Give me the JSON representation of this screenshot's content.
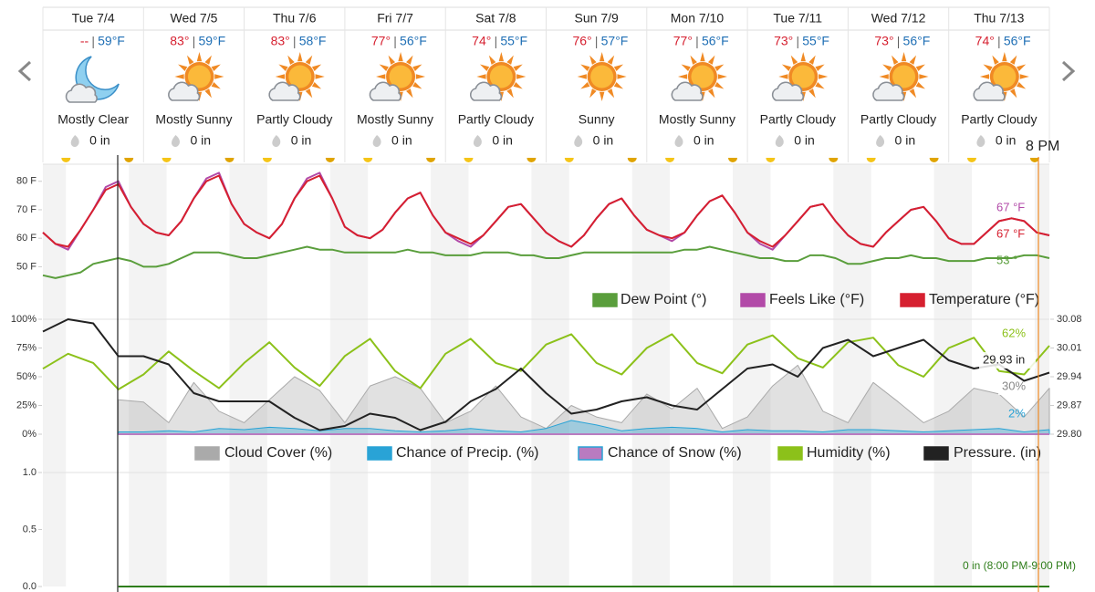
{
  "forecast": [
    {
      "date": "Tue 7/4",
      "high": "--",
      "low": "59°F",
      "condition": "Mostly Clear",
      "precip": "0 in"
    },
    {
      "date": "Wed 7/5",
      "high": "83°",
      "low": "59°F",
      "condition": "Mostly Sunny",
      "precip": "0 in"
    },
    {
      "date": "Thu 7/6",
      "high": "83°",
      "low": "58°F",
      "condition": "Partly Cloudy",
      "precip": "0 in"
    },
    {
      "date": "Fri 7/7",
      "high": "77°",
      "low": "56°F",
      "condition": "Mostly Sunny",
      "precip": "0 in"
    },
    {
      "date": "Sat 7/8",
      "high": "74°",
      "low": "55°F",
      "condition": "Partly Cloudy",
      "precip": "0 in"
    },
    {
      "date": "Sun 7/9",
      "high": "76°",
      "low": "57°F",
      "condition": "Sunny",
      "precip": "0 in"
    },
    {
      "date": "Mon 7/10",
      "high": "77°",
      "low": "56°F",
      "condition": "Mostly Sunny",
      "precip": "0 in"
    },
    {
      "date": "Tue 7/11",
      "high": "73°",
      "low": "55°F",
      "condition": "Partly Cloudy",
      "precip": "0 in"
    },
    {
      "date": "Wed 7/12",
      "high": "73°",
      "low": "56°F",
      "condition": "Partly Cloudy",
      "precip": "0 in"
    },
    {
      "date": "Thu 7/13",
      "high": "74°",
      "low": "56°F",
      "condition": "Partly Cloudy",
      "precip": "0 in"
    }
  ],
  "current_time": "8 PM",
  "chart_data": [
    {
      "type": "line",
      "ylim": [
        45,
        86
      ],
      "yticks": [
        {
          "value": 80,
          "label": "80 F"
        },
        {
          "value": 70,
          "label": "70 F"
        },
        {
          "value": 60,
          "label": "60 F"
        },
        {
          "value": 50,
          "label": "50 F"
        }
      ],
      "series": [
        {
          "name": "Dew Point (°)",
          "color": "#5a9e3c",
          "readout": "53 °",
          "values": [
            47,
            46,
            47,
            48,
            51,
            52,
            53,
            52,
            50,
            50,
            51,
            53,
            55,
            55,
            55,
            54,
            53,
            53,
            54,
            55,
            56,
            57,
            56,
            56,
            55,
            55,
            55,
            55,
            55,
            56,
            55,
            55,
            54,
            54,
            54,
            55,
            55,
            55,
            54,
            54,
            53,
            53,
            54,
            55,
            55,
            55,
            55,
            55,
            55,
            55,
            55,
            56,
            56,
            57,
            56,
            55,
            54,
            53,
            53,
            52,
            52,
            54,
            54,
            53,
            51,
            51,
            52,
            53,
            53,
            54,
            53,
            53,
            52,
            52,
            52,
            53,
            53,
            53,
            54,
            54,
            53
          ]
        },
        {
          "name": "Feels Like (°F)",
          "color": "#b24aa8",
          "readout": "67 °F",
          "values": [
            62,
            58,
            56,
            63,
            70,
            78,
            80,
            71,
            65,
            62,
            61,
            66,
            74,
            81,
            83,
            72,
            65,
            62,
            60,
            65,
            74,
            81,
            83,
            74,
            64,
            61,
            60,
            63,
            69,
            74,
            76,
            68,
            62,
            59,
            57,
            61,
            66,
            71,
            72,
            67,
            62,
            59,
            57,
            61,
            67,
            72,
            74,
            68,
            63,
            61,
            59,
            62,
            68,
            73,
            75,
            69,
            62,
            58,
            56,
            61,
            66,
            71,
            72,
            66,
            61,
            58,
            57,
            62,
            66,
            70,
            71,
            66,
            60,
            58,
            58,
            62,
            66,
            67,
            66,
            62,
            61
          ]
        },
        {
          "name": "Temperature (°F)",
          "color": "#d62030",
          "readout": "67 °F",
          "values": [
            62,
            58,
            57,
            63,
            70,
            77,
            79,
            71,
            65,
            62,
            61,
            66,
            74,
            80,
            82,
            72,
            65,
            62,
            60,
            65,
            74,
            80,
            82,
            74,
            64,
            61,
            60,
            63,
            69,
            74,
            76,
            68,
            62,
            60,
            58,
            61,
            66,
            71,
            72,
            67,
            62,
            59,
            57,
            61,
            67,
            72,
            74,
            68,
            63,
            61,
            60,
            62,
            68,
            73,
            75,
            69,
            62,
            59,
            57,
            61,
            66,
            71,
            72,
            66,
            61,
            58,
            57,
            62,
            66,
            70,
            71,
            66,
            60,
            58,
            58,
            62,
            66,
            67,
            66,
            62,
            61
          ]
        }
      ]
    },
    {
      "type": "line",
      "ylim": [
        0,
        100
      ],
      "yticks": [
        {
          "value": 100,
          "label": "100%"
        },
        {
          "value": 75,
          "label": "75%"
        },
        {
          "value": 50,
          "label": "50%"
        },
        {
          "value": 25,
          "label": "25%"
        },
        {
          "value": 0,
          "label": "0%"
        }
      ],
      "y2lim": [
        29.8,
        30.08
      ],
      "y2ticks": [
        30.08,
        30.01,
        29.94,
        29.87,
        {
          "value": 29.8,
          "label": "29.80"
        }
      ],
      "series": [
        {
          "name": "Cloud Cover (%)",
          "color": "#aaaaaa",
          "style": "area",
          "readout": "30%",
          "values": [
            null,
            null,
            null,
            30,
            28,
            10,
            45,
            20,
            10,
            30,
            50,
            38,
            10,
            42,
            50,
            40,
            10,
            20,
            42,
            15,
            5,
            25,
            15,
            10,
            35,
            22,
            40,
            5,
            15,
            42,
            60,
            20,
            10,
            45,
            28,
            10,
            20,
            40,
            35,
            15,
            40
          ]
        },
        {
          "name": "Chance of Precip. (%)",
          "color": "#29a3d6",
          "style": "area",
          "readout": "2%",
          "values": [
            null,
            null,
            null,
            2,
            2,
            3,
            2,
            5,
            4,
            6,
            5,
            3,
            5,
            5,
            3,
            2,
            3,
            5,
            3,
            2,
            5,
            12,
            8,
            3,
            5,
            6,
            5,
            2,
            4,
            3,
            3,
            2,
            4,
            4,
            3,
            2,
            3,
            4,
            5,
            2,
            4
          ]
        },
        {
          "name": "Chance of Snow (%)",
          "color": "#b97bc0",
          "values": [
            null,
            null,
            null,
            0,
            0,
            0,
            0,
            0,
            0,
            0,
            0,
            0,
            0,
            0,
            0,
            0,
            0,
            0,
            0,
            0,
            0,
            0,
            0,
            0,
            0,
            0,
            0,
            0,
            0,
            0,
            0,
            0,
            0,
            0,
            0,
            0,
            0,
            0,
            0,
            0,
            0
          ]
        },
        {
          "name": "Humidity (%)",
          "color": "#8cc11a",
          "readout": "62%",
          "values": [
            57,
            70,
            62,
            39,
            52,
            72,
            55,
            40,
            62,
            80,
            58,
            42,
            68,
            83,
            55,
            40,
            70,
            83,
            62,
            55,
            78,
            87,
            62,
            52,
            75,
            87,
            62,
            53,
            78,
            86,
            66,
            58,
            80,
            84,
            60,
            50,
            75,
            84,
            55,
            52,
            77
          ]
        },
        {
          "name": "Pressure. (in)",
          "color": "#222222",
          "axis": "y2",
          "readout": "29.93 in",
          "values": [
            30.05,
            30.08,
            30.07,
            29.99,
            29.99,
            29.97,
            29.9,
            29.88,
            29.88,
            29.88,
            29.84,
            29.81,
            29.82,
            29.85,
            29.84,
            29.81,
            29.83,
            29.88,
            29.91,
            29.96,
            29.9,
            29.85,
            29.86,
            29.88,
            29.89,
            29.87,
            29.86,
            29.91,
            29.96,
            29.97,
            29.94,
            30.01,
            30.03,
            29.99,
            30.01,
            30.03,
            29.98,
            29.96,
            29.97,
            29.93,
            29.95
          ]
        }
      ]
    },
    {
      "type": "line",
      "ylim": [
        0,
        1
      ],
      "yticks": [
        {
          "value": 1,
          "label": "1.0"
        },
        {
          "value": 0.5,
          "label": "0.5"
        },
        {
          "value": 0,
          "label": "0.0"
        }
      ],
      "series": [
        {
          "color": "#2e7d1a",
          "readout": "0 in (8:00 PM-9:00 PM)",
          "values": [
            null,
            null,
            null,
            0,
            0,
            0,
            0,
            0,
            0,
            0,
            0,
            0,
            0,
            0,
            0,
            0,
            0,
            0,
            0,
            0,
            0,
            0,
            0,
            0,
            0,
            0,
            0,
            0,
            0,
            0,
            0,
            0,
            0,
            0,
            0,
            0,
            0,
            0,
            0,
            0,
            0
          ]
        }
      ]
    }
  ]
}
